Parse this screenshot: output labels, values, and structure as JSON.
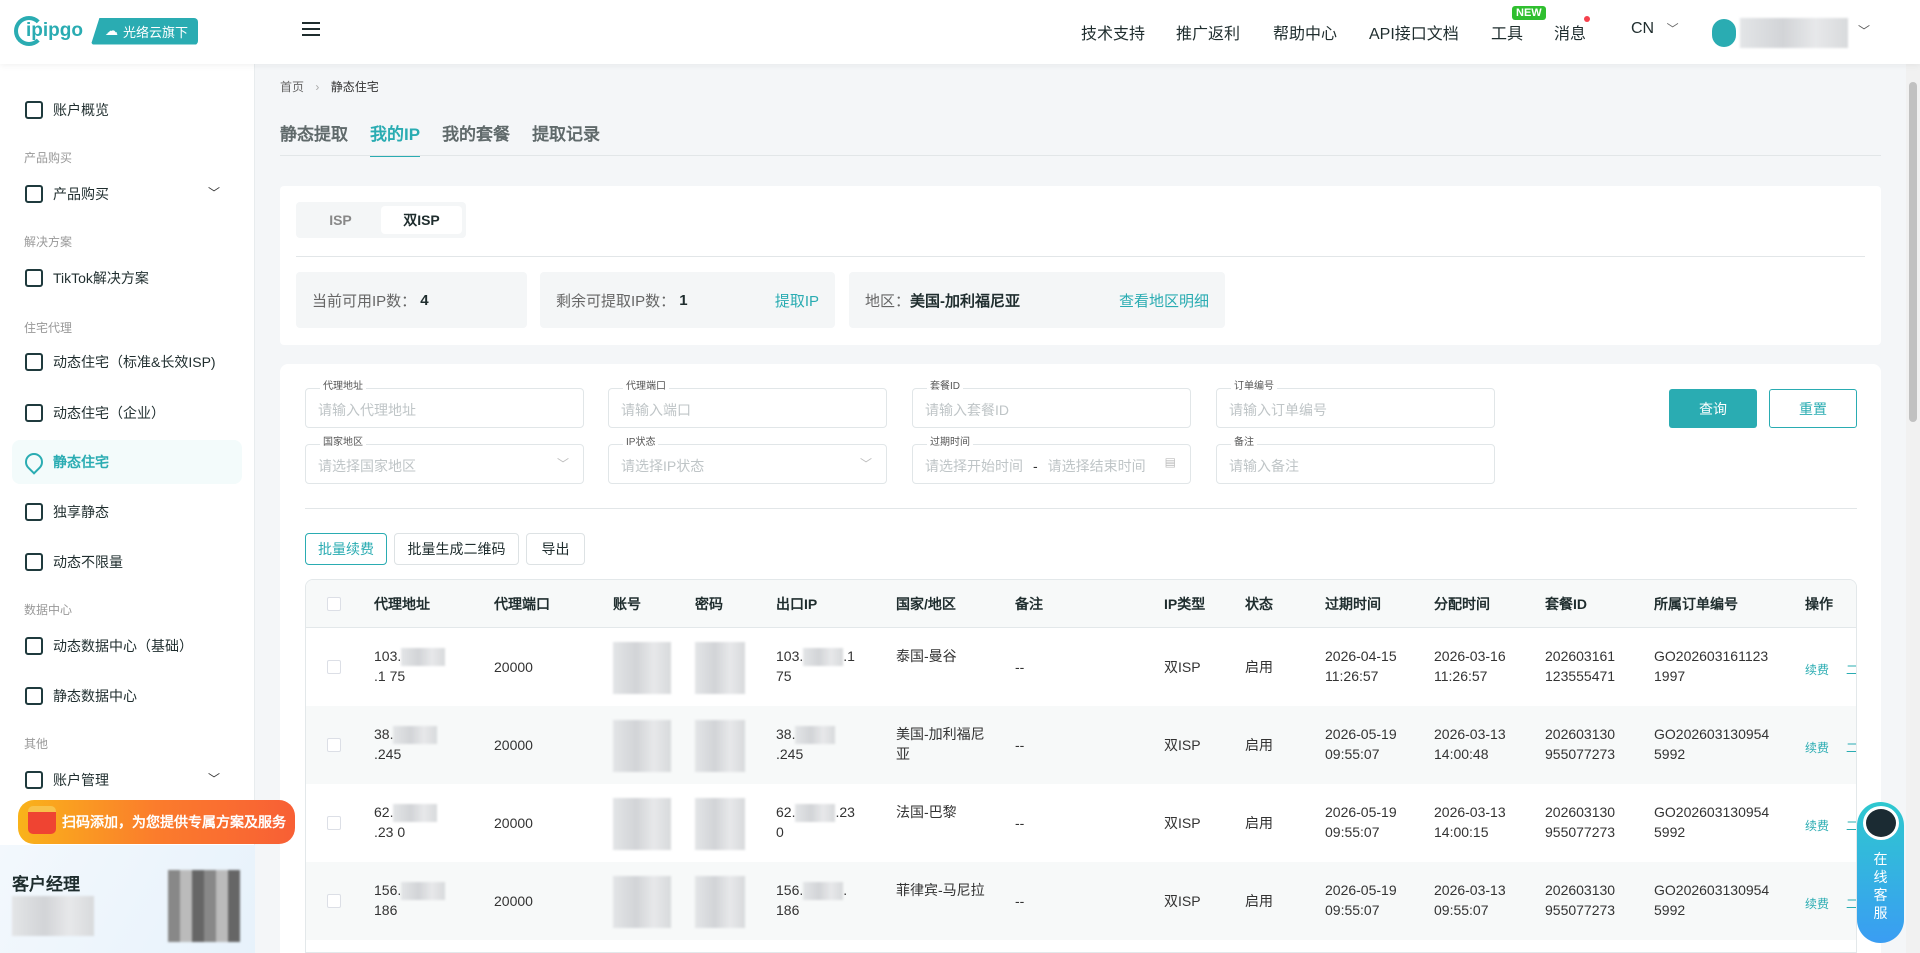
{
  "header": {
    "logo": "ipipgo",
    "logo_badge": "光络云旗下",
    "nav": [
      "技术支持",
      "推广返利",
      "帮助中心",
      "API接口文档",
      "工具",
      "消息"
    ],
    "new_badge": "NEW",
    "lang": "CN"
  },
  "sidebar": {
    "items": [
      {
        "type": "item",
        "label": "账户概览",
        "icon": "chart-icon"
      },
      {
        "type": "group",
        "label": "产品购买"
      },
      {
        "type": "item",
        "label": "产品购买",
        "icon": "bag-icon",
        "chevron": true
      },
      {
        "type": "group",
        "label": "解决方案"
      },
      {
        "type": "item",
        "label": "TikTok解决方案",
        "icon": "tiktok-icon"
      },
      {
        "type": "group",
        "label": "住宅代理"
      },
      {
        "type": "item",
        "label": "动态住宅（标准&长效ISP)",
        "icon": "home-icon"
      },
      {
        "type": "item",
        "label": "动态住宅（企业）",
        "icon": "building-icon"
      },
      {
        "type": "item",
        "label": "静态住宅",
        "icon": "location-icon",
        "active": true
      },
      {
        "type": "item",
        "label": "独享静态",
        "icon": "location-lock-icon"
      },
      {
        "type": "item",
        "label": "动态不限量",
        "icon": "infinity-icon"
      },
      {
        "type": "group",
        "label": "数据中心"
      },
      {
        "type": "item",
        "label": "动态数据中心（基础）",
        "icon": "layers-icon"
      },
      {
        "type": "item",
        "label": "静态数据中心",
        "icon": "server-icon"
      },
      {
        "type": "group",
        "label": "其他"
      },
      {
        "type": "item",
        "label": "账户管理",
        "icon": "card-icon",
        "chevron": true
      }
    ],
    "promo": "扫码添加，为您提供专属方案及服务",
    "manager_title": "客户经理"
  },
  "breadcrumb": [
    "首页",
    "静态住宅"
  ],
  "tabs": [
    "静态提取",
    "我的IP",
    "我的套餐",
    "提取记录"
  ],
  "active_tab": "我的IP",
  "isp_toggle": [
    "ISP",
    "双ISP"
  ],
  "stats": {
    "available_label": "当前可用IP数：",
    "available": "4",
    "remaining_label": "剩余可提取IP数：",
    "remaining": "1",
    "extract_link": "提取IP",
    "region_label": "地区：",
    "region": "美国-加利福尼亚",
    "region_link": "查看地区明细"
  },
  "filters": [
    {
      "label": "代理地址",
      "placeholder": "请输入代理地址"
    },
    {
      "label": "代理端口",
      "placeholder": "请输入端口"
    },
    {
      "label": "套餐ID",
      "placeholder": "请输入套餐ID"
    },
    {
      "label": "订单编号",
      "placeholder": "请输入订单编号"
    },
    {
      "label": "国家地区",
      "placeholder": "请选择国家地区",
      "select": true
    },
    {
      "label": "IP状态",
      "placeholder": "请选择IP状态",
      "select": true
    },
    {
      "label": "过期时间",
      "placeholder": "请选择开始时间",
      "placeholder2": "请选择结束时间",
      "range": true
    },
    {
      "label": "备注",
      "placeholder": "请输入备注"
    }
  ],
  "buttons": {
    "query": "查询",
    "reset": "重置",
    "batch_renew": "批量续费",
    "batch_qr": "批量生成二维码",
    "export": "导出"
  },
  "table": {
    "columns": [
      "代理地址",
      "代理端口",
      "账号",
      "密码",
      "出口IP",
      "国家/地区",
      "备注",
      "IP类型",
      "状态",
      "过期时间",
      "分配时间",
      "套餐ID",
      "所属订单编号",
      "操作"
    ],
    "rows": [
      {
        "ip_prefix": "103.",
        "ip_suffix": ".1 75",
        "port": "20000",
        "exit_prefix": "103.",
        "exit_suffix": ".1 75",
        "country": "泰国-曼谷",
        "remark": "--",
        "type": "双ISP",
        "status": "启用",
        "expire": "2026-04-15 11:26:57",
        "assigned": "2026-03-16 11:26:57",
        "package_id": "202603161 123555471",
        "order": "GO202603161123 1997",
        "actions": [
          "续费",
          "二"
        ]
      },
      {
        "ip_prefix": "38.",
        "ip_suffix": ".245",
        "port": "20000",
        "exit_prefix": "38.",
        "exit_suffix": ".245",
        "country": "美国-加利福尼亚",
        "remark": "--",
        "type": "双ISP",
        "status": "启用",
        "expire": "2026-05-19 09:55:07",
        "assigned": "2026-03-13 14:00:48",
        "package_id": "202603130 955077273",
        "order": "GO202603130954 5992",
        "actions": [
          "续费",
          "二"
        ]
      },
      {
        "ip_prefix": "62.",
        "ip_suffix": ".23 0",
        "port": "20000",
        "exit_prefix": "62.",
        "exit_suffix": ".23 0",
        "country": "法国-巴黎",
        "remark": "--",
        "type": "双ISP",
        "status": "启用",
        "expire": "2026-05-19 09:55:07",
        "assigned": "2026-03-13 14:00:15",
        "package_id": "202603130 955077273",
        "order": "GO202603130954 5992",
        "actions": [
          "续费",
          "二"
        ]
      },
      {
        "ip_prefix": "156.",
        "ip_suffix": " 186",
        "port": "20000",
        "exit_prefix": "156.",
        "exit_suffix": ". 186",
        "country": "菲律宾-马尼拉",
        "remark": "--",
        "type": "双ISP",
        "status": "启用",
        "expire": "2026-05-19 09:55:07",
        "assigned": "2026-03-13 09:55:07",
        "package_id": "202603130 955077273",
        "order": "GO202603130954 5992",
        "actions": [
          "续费",
          "二"
        ]
      }
    ]
  },
  "service_float": "在线客服",
  "colors": {
    "accent": "#2aacb2",
    "promo": "#fb7c2c"
  }
}
